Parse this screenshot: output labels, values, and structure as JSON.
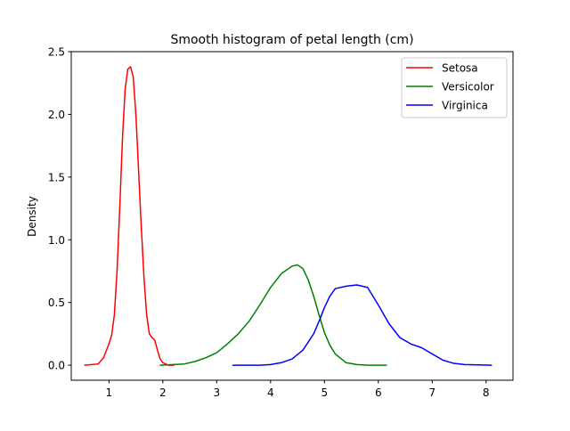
{
  "chart_data": {
    "type": "line",
    "title": "Smooth histogram of petal length (cm)",
    "xlabel": "",
    "ylabel": "Density",
    "xlim": [
      0.3,
      8.5
    ],
    "ylim": [
      -0.12,
      2.5
    ],
    "x_ticks": [
      1,
      2,
      3,
      4,
      5,
      6,
      7,
      8
    ],
    "x_tick_labels": [
      "1",
      "2",
      "3",
      "4",
      "5",
      "6",
      "7",
      "8"
    ],
    "y_ticks": [
      0.0,
      0.5,
      1.0,
      1.5,
      2.0,
      2.5
    ],
    "y_tick_labels": [
      "0.0",
      "0.5",
      "1.0",
      "1.5",
      "2.0",
      "2.5"
    ],
    "grid": false,
    "legend_position": "top-right",
    "series": [
      {
        "name": "Setosa",
        "color": "#ff0000",
        "x": [
          0.55,
          0.8,
          0.9,
          1.0,
          1.05,
          1.1,
          1.15,
          1.2,
          1.25,
          1.3,
          1.35,
          1.4,
          1.45,
          1.5,
          1.55,
          1.6,
          1.65,
          1.7,
          1.75,
          1.8,
          1.85,
          1.9,
          1.95,
          2.0,
          2.05,
          2.1,
          2.2
        ],
        "y": [
          0.0,
          0.01,
          0.06,
          0.17,
          0.24,
          0.4,
          0.75,
          1.25,
          1.8,
          2.2,
          2.36,
          2.38,
          2.3,
          2.0,
          1.55,
          1.1,
          0.7,
          0.4,
          0.25,
          0.22,
          0.2,
          0.12,
          0.05,
          0.02,
          0.01,
          0.0,
          0.0
        ]
      },
      {
        "name": "Versicolor",
        "color": "#008000",
        "x": [
          1.95,
          2.4,
          2.6,
          2.8,
          3.0,
          3.2,
          3.4,
          3.6,
          3.8,
          4.0,
          4.2,
          4.4,
          4.5,
          4.6,
          4.7,
          4.8,
          4.9,
          5.0,
          5.1,
          5.2,
          5.4,
          5.6,
          5.8,
          6.0,
          6.15
        ],
        "y": [
          0.0,
          0.01,
          0.03,
          0.06,
          0.1,
          0.17,
          0.25,
          0.35,
          0.48,
          0.62,
          0.73,
          0.79,
          0.8,
          0.77,
          0.68,
          0.55,
          0.4,
          0.26,
          0.16,
          0.09,
          0.02,
          0.005,
          0.0,
          0.0,
          0.0
        ]
      },
      {
        "name": "Virginica",
        "color": "#0000ff",
        "x": [
          3.3,
          3.8,
          4.0,
          4.2,
          4.4,
          4.6,
          4.8,
          4.9,
          5.0,
          5.1,
          5.2,
          5.4,
          5.6,
          5.8,
          6.0,
          6.2,
          6.4,
          6.6,
          6.8,
          7.0,
          7.2,
          7.4,
          7.6,
          8.1
        ],
        "y": [
          0.0,
          0.0,
          0.005,
          0.02,
          0.05,
          0.12,
          0.25,
          0.35,
          0.46,
          0.55,
          0.61,
          0.63,
          0.64,
          0.62,
          0.48,
          0.33,
          0.22,
          0.17,
          0.14,
          0.09,
          0.04,
          0.015,
          0.005,
          0.0
        ]
      }
    ]
  }
}
